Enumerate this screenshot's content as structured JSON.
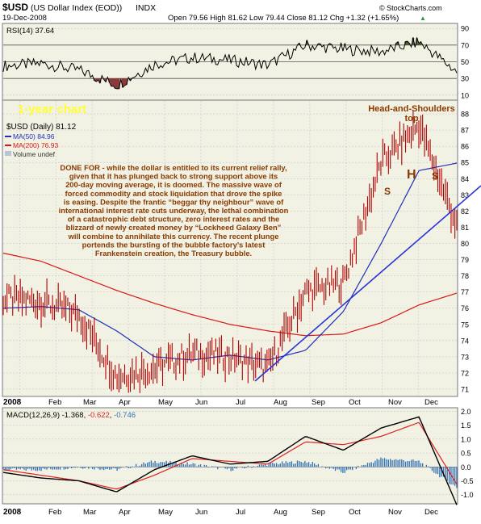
{
  "header": {
    "symbol": "$USD",
    "name": "(US Dollar Index (EOD))",
    "exchange": "INDX",
    "date": "19-Dec-2008",
    "quote_line": "Open 79.56  High 81.62  Low 79.44  Close 81.12  Chg +1.32 (+1.65%)",
    "quote_arrow": "▲",
    "source": "© StockCharts.com"
  },
  "colors": {
    "panel_bg": "#f2f2e4",
    "grid": "#c8c8c8",
    "price": "#b00000",
    "ma50": "#1f30b8",
    "ma200": "#d81818",
    "trendline": "#2a34d8",
    "annotation": "#8a3a00",
    "yellow_label": "#ffff33",
    "rsi_overbought_fill": "#4f5a2c",
    "rsi_oversold_fill": "#8a3a3a",
    "macd_line": "#000000",
    "macd_signal": "#e02020",
    "macd_hist": "#2f6fb4"
  },
  "rsi_panel": {
    "label_prefix": "RSI(14)",
    "label_value": "37.64",
    "axis_ticks": [
      "90",
      "70",
      "50",
      "30",
      "10"
    ]
  },
  "price_panel": {
    "legend": {
      "price_label": "$USD (Daily) 81.12",
      "ma50_label": "MA(50) 84.96",
      "ma200_label": "MA(200) 76.93",
      "volume_label": "Volume undef"
    },
    "axis_ticks": [
      "88",
      "87",
      "86",
      "85",
      "84",
      "83",
      "82",
      "81",
      "80",
      "79",
      "78",
      "77",
      "76",
      "75",
      "74",
      "73",
      "72",
      "71"
    ],
    "one_year_label": "1-year chart",
    "hs_title_line1": "Head-and-Shoulders",
    "hs_title_line2": "top",
    "hs_letters": [
      "S",
      "H",
      "S"
    ],
    "commentary": [
      "DONE FOR - while the dollar is entitled to its current relief rally,",
      "given that it has plunged back to strong support above its",
      "200-day moving average, it is doomed. The massive wave of",
      "forced commodity and stock liquidation that drove the spike",
      "is easing. Despite the frantic “beggar thy neighbour” wave of",
      "international interest rate cuts underway, the lethal combination",
      "of a catastrophic debt structure, zero interest rates and the",
      "blizzard of newly created money by “Lockheed Galaxy Ben”",
      "will combine to annihilate this currency. The recent plunge",
      "portends the bursting of the bubble factory’s latest",
      "Frankenstein creation, the Treasury bubble."
    ]
  },
  "macd_panel": {
    "label_prefix": "MACD(12,26,9)",
    "macd_value": "-1.368",
    "signal_value": "-0.622",
    "hist_value": "-0.746",
    "axis_ticks": [
      "2.0",
      "1.5",
      "1.0",
      "0.5",
      "0.0",
      "-0.5",
      "-1.0"
    ]
  },
  "x_axis": {
    "year": "2008",
    "months": [
      "Feb",
      "Mar",
      "Apr",
      "May",
      "Jun",
      "Jul",
      "Aug",
      "Sep",
      "Oct",
      "Nov",
      "Dec"
    ]
  },
  "chart_data": [
    {
      "type": "line",
      "name": "RSI(14)",
      "x": [
        "Dec",
        "Jan",
        "Feb",
        "Mar",
        "Apr",
        "May",
        "Jun",
        "Jul",
        "Aug",
        "Sep",
        "Oct",
        "Nov",
        "Dec"
      ],
      "series": [
        {
          "name": "RSI(14)",
          "values": [
            45,
            48,
            40,
            22,
            47,
            55,
            52,
            46,
            70,
            65,
            62,
            74,
            38
          ]
        }
      ],
      "ylim": [
        5,
        95
      ],
      "reference_lines": [
        30,
        50,
        70
      ]
    },
    {
      "type": "line",
      "name": "$USD (Daily)",
      "x": [
        "Dec",
        "Jan",
        "Feb",
        "Mar",
        "Apr",
        "May",
        "Jun",
        "Jul",
        "Aug",
        "Sep",
        "Oct",
        "Nov",
        "Dec"
      ],
      "series": [
        {
          "name": "$USD (Daily)",
          "values": [
            76.6,
            76.4,
            75.6,
            71.8,
            72.3,
            73.2,
            73.0,
            72.3,
            77.0,
            77.6,
            85.0,
            87.3,
            81.12
          ]
        },
        {
          "name": "MA(50)",
          "values": [
            76.0,
            76.1,
            75.9,
            74.6,
            73.0,
            72.8,
            73.1,
            72.8,
            73.4,
            75.8,
            80.0,
            84.5,
            84.96
          ]
        },
        {
          "name": "MA(200)",
          "values": [
            79.4,
            78.9,
            78.0,
            77.1,
            76.3,
            75.6,
            75.0,
            74.6,
            74.3,
            74.4,
            75.1,
            76.2,
            76.93
          ]
        }
      ],
      "ylim": [
        70.6,
        88.8
      ],
      "annotations": [
        "1-year chart",
        "Head-and-Shoulders top",
        "S",
        "H",
        "S"
      ]
    },
    {
      "type": "line",
      "name": "MACD(12,26,9)",
      "x": [
        "Dec",
        "Jan",
        "Feb",
        "Mar",
        "Apr",
        "May",
        "Jun",
        "Jul",
        "Aug",
        "Sep",
        "Oct",
        "Nov",
        "Dec"
      ],
      "series": [
        {
          "name": "MACD",
          "values": [
            -0.2,
            -0.4,
            -0.5,
            -0.9,
            -0.1,
            0.4,
            0.1,
            0.2,
            1.1,
            0.6,
            1.4,
            1.8,
            -1.368
          ]
        },
        {
          "name": "Signal",
          "values": [
            -0.1,
            -0.3,
            -0.5,
            -0.8,
            -0.3,
            0.3,
            0.2,
            0.1,
            0.9,
            0.8,
            1.1,
            1.6,
            -0.622
          ]
        },
        {
          "name": "Histogram",
          "values": [
            -0.1,
            -0.1,
            0.0,
            -0.1,
            0.2,
            0.1,
            -0.1,
            0.1,
            0.2,
            -0.2,
            0.3,
            0.2,
            -0.746
          ]
        }
      ],
      "ylim": [
        -1.3,
        2.1
      ]
    }
  ]
}
